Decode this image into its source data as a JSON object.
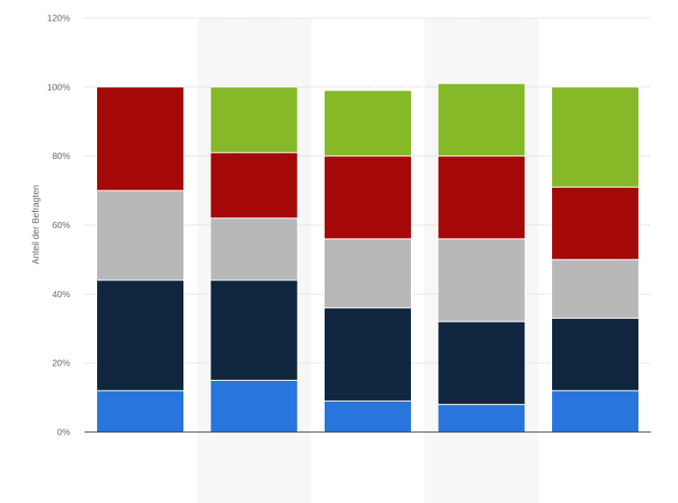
{
  "chart_data": {
    "type": "bar",
    "stacked": true,
    "title": "",
    "xlabel": "",
    "ylabel": "Anteil der Befragten",
    "ylim": [
      0,
      120
    ],
    "y_ticks": [
      "0%",
      "20%",
      "40%",
      "60%",
      "80%",
      "100%",
      "120%"
    ],
    "y_tick_values": [
      0,
      20,
      40,
      60,
      80,
      100,
      120
    ],
    "grid": true,
    "legend": "none",
    "categories": [
      "",
      "",
      "",
      "",
      ""
    ],
    "series": [
      {
        "color": "#2876dd",
        "values": [
          12,
          15,
          9,
          8,
          12
        ]
      },
      {
        "color": "#10263e",
        "values": [
          32,
          29,
          27,
          24,
          21
        ]
      },
      {
        "color": "#b8b8b8",
        "values": [
          26,
          18,
          20,
          24,
          17
        ]
      },
      {
        "color": "#a50808",
        "values": [
          30,
          19,
          24,
          24,
          21
        ]
      },
      {
        "color": "#86b927",
        "values": [
          0,
          19,
          19,
          21,
          29
        ]
      }
    ],
    "column_band_color": "#f7f7f7"
  }
}
